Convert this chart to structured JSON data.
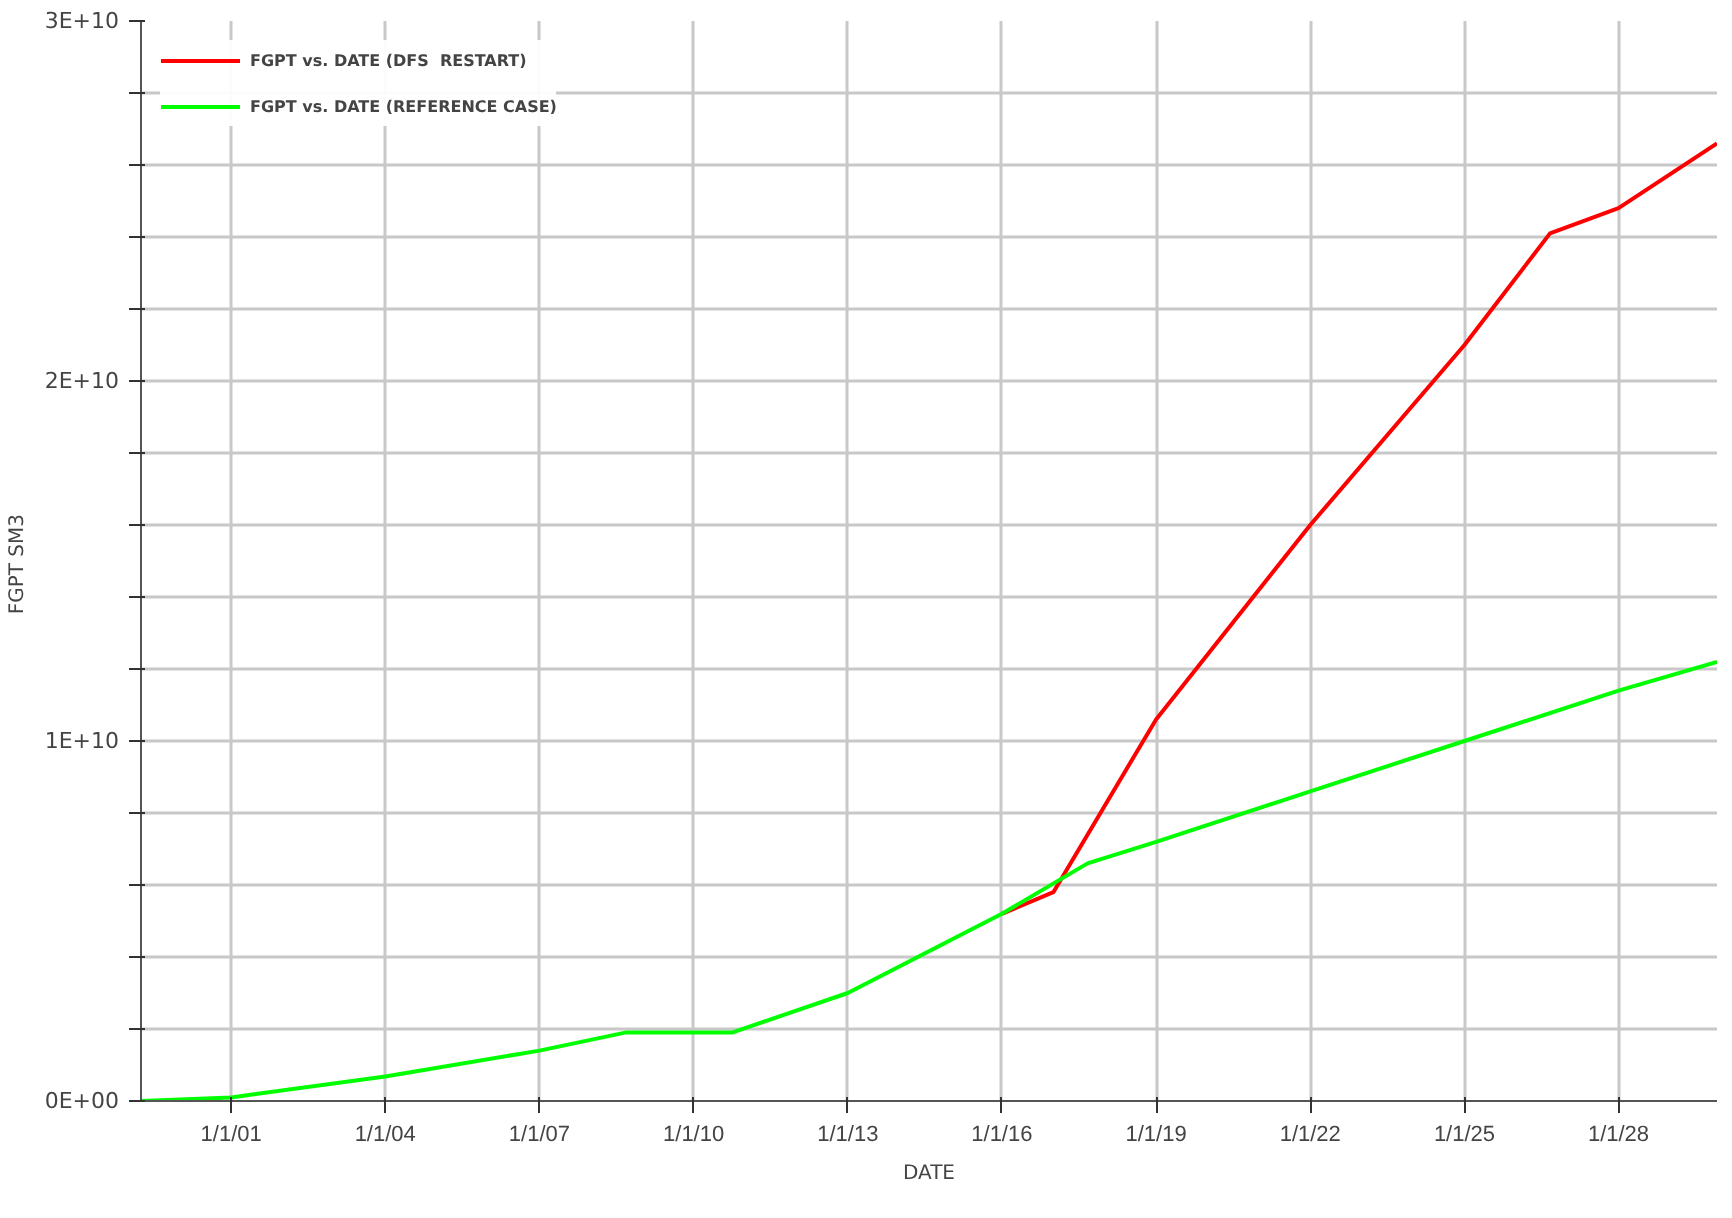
{
  "chart_data": {
    "type": "line",
    "xlabel": "DATE",
    "ylabel": "FGPT  SM3",
    "xlim": [
      "1999-04",
      "2029-12"
    ],
    "xticks": [
      {
        "value": "2001-01-01",
        "label": "1/1/01"
      },
      {
        "value": "2004-01-01",
        "label": "1/1/04"
      },
      {
        "value": "2007-01-01",
        "label": "1/1/07"
      },
      {
        "value": "2010-01-01",
        "label": "1/1/10"
      },
      {
        "value": "2013-01-01",
        "label": "1/1/13"
      },
      {
        "value": "2016-01-01",
        "label": "1/1/16"
      },
      {
        "value": "2019-01-01",
        "label": "1/1/19"
      },
      {
        "value": "2022-01-01",
        "label": "1/1/22"
      },
      {
        "value": "2025-01-01",
        "label": "1/1/25"
      },
      {
        "value": "2028-01-01",
        "label": "1/1/28"
      }
    ],
    "ylim": [
      0,
      30000000000
    ],
    "yticks": [
      {
        "value": 0,
        "label": "0E+00"
      },
      {
        "value": 2000000000,
        "label": null
      },
      {
        "value": 4000000000,
        "label": null
      },
      {
        "value": 6000000000,
        "label": null
      },
      {
        "value": 8000000000,
        "label": null
      },
      {
        "value": 10000000000,
        "label": "1E+10"
      },
      {
        "value": 12000000000,
        "label": null
      },
      {
        "value": 14000000000,
        "label": null
      },
      {
        "value": 16000000000,
        "label": null
      },
      {
        "value": 18000000000,
        "label": null
      },
      {
        "value": 20000000000,
        "label": "2E+10"
      },
      {
        "value": 22000000000,
        "label": null
      },
      {
        "value": 24000000000,
        "label": null
      },
      {
        "value": 26000000000,
        "label": null
      },
      {
        "value": 28000000000,
        "label": null
      },
      {
        "value": 30000000000,
        "label": "3E+10"
      }
    ],
    "grid": true,
    "legend": "top left",
    "marker": "none",
    "line_style": "solid",
    "series": [
      {
        "name": "FGPT vs. DATE (DFS  RESTART)",
        "color": "#ff0000",
        "x": [
          "2016-01",
          "2017-01",
          "2019-01",
          "2022-01",
          "2025-01",
          "2026-09",
          "2028-01",
          "2029-12"
        ],
        "values": [
          5200000000,
          5800000000,
          10600000000,
          16000000000,
          21000000000,
          24100000000,
          24800000000,
          26600000000
        ]
      },
      {
        "name": "FGPT vs. DATE (REFERENCE CASE)",
        "color": "#00ff00",
        "x": [
          "1999-04",
          "2001-01",
          "2004-01",
          "2007-01",
          "2008-09",
          "2010-10",
          "2013-01",
          "2016-01",
          "2017-09",
          "2019-01",
          "2022-01",
          "2025-01",
          "2028-01",
          "2029-12"
        ],
        "values": [
          0,
          100000000,
          680000000,
          1400000000,
          1900000000,
          1900000000,
          3000000000,
          5200000000,
          6600000000,
          7200000000,
          8600000000,
          10000000000,
          11400000000,
          12200000000
        ]
      }
    ]
  }
}
